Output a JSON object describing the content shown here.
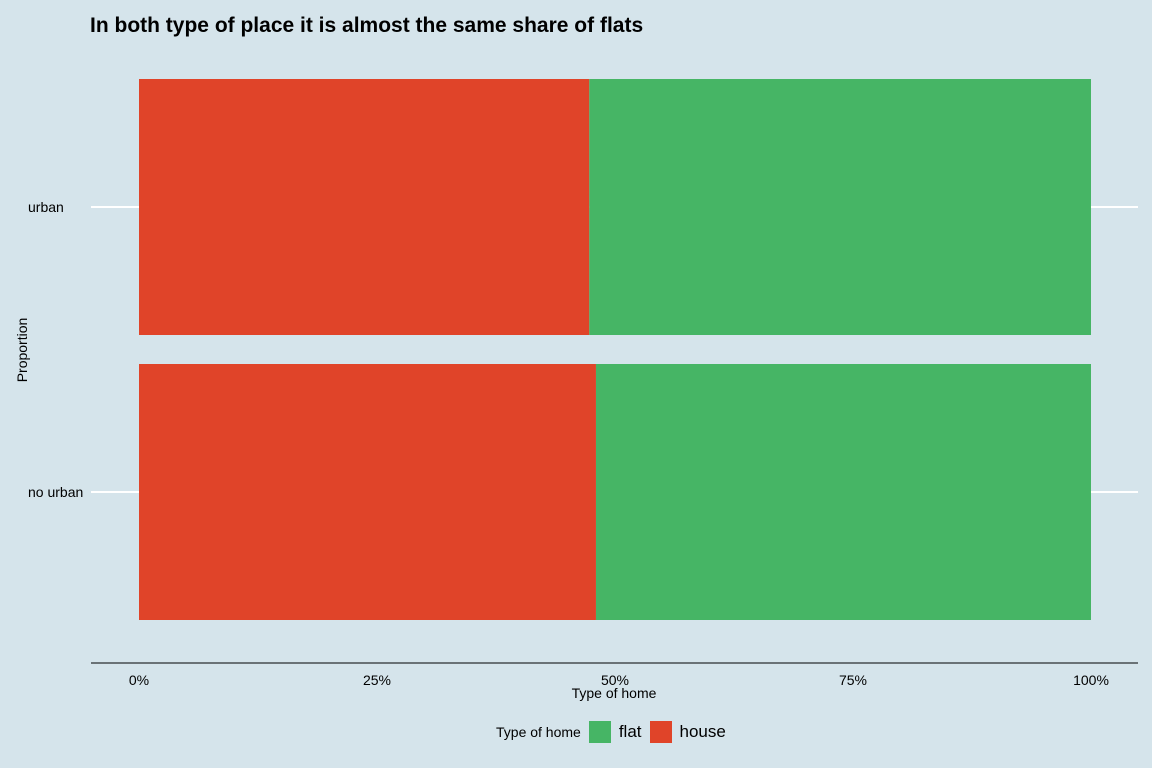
{
  "chart_data": {
    "type": "bar",
    "orientation": "horizontal",
    "stacked": "percent",
    "title": "In both type of place it is almost the same share of flats",
    "xlabel": "Type of home",
    "ylabel": "Proportion",
    "categories": [
      "no urban",
      "urban"
    ],
    "series": [
      {
        "name": "house",
        "color": "#e04429",
        "values": [
          0.48,
          0.473
        ]
      },
      {
        "name": "flat",
        "color": "#46b565",
        "values": [
          0.52,
          0.527
        ]
      }
    ],
    "x_ticks": [
      {
        "value": 0,
        "label": "0%"
      },
      {
        "value": 0.25,
        "label": "25%"
      },
      {
        "value": 0.5,
        "label": "50%"
      },
      {
        "value": 0.75,
        "label": "75%"
      },
      {
        "value": 1,
        "label": "100%"
      }
    ],
    "xlim": [
      0,
      1
    ],
    "grid": "horizontal major lines",
    "legend": {
      "title": "Type of home",
      "position": "bottom",
      "entries": [
        {
          "label": "flat",
          "color": "#46b565"
        },
        {
          "label": "house",
          "color": "#e04429"
        }
      ]
    }
  }
}
